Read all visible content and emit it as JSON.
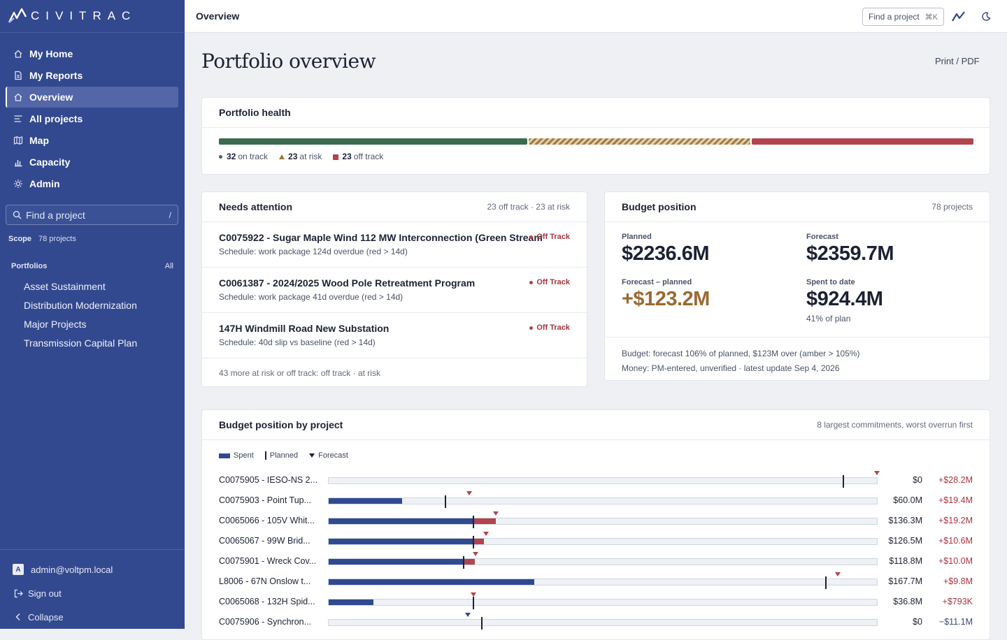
{
  "app": {
    "brand": "CIVITRAC"
  },
  "sidebar": {
    "nav": [
      {
        "label": "My Home",
        "icon": "home-icon",
        "active": false
      },
      {
        "label": "My Reports",
        "icon": "document-icon",
        "active": false
      },
      {
        "label": "Overview",
        "icon": "home-icon",
        "active": true
      },
      {
        "label": "All projects",
        "icon": "list-icon",
        "active": false
      },
      {
        "label": "Map",
        "icon": "map-icon",
        "active": false
      },
      {
        "label": "Capacity",
        "icon": "bar-chart-icon",
        "active": false
      },
      {
        "label": "Admin",
        "icon": "gear-icon",
        "active": false
      }
    ],
    "search": {
      "placeholder": "Find a project",
      "shortcut": "/"
    },
    "scope": {
      "label": "Scope",
      "value": "78 projects"
    },
    "portfolios": {
      "heading": "Portfolios",
      "all_label": "All",
      "items": [
        "Asset Sustainment",
        "Distribution Modernization",
        "Major Projects",
        "Transmission Capital Plan"
      ]
    },
    "user": {
      "initial": "A",
      "email": "admin@voltpm.local"
    },
    "sign_out": "Sign out",
    "collapse": "Collapse"
  },
  "topbar": {
    "title": "Overview",
    "find_label": "Find a project",
    "find_shortcut": "⌘K"
  },
  "page": {
    "title": "Portfolio overview",
    "print_label": "Print / PDF"
  },
  "health": {
    "title": "Portfolio health",
    "on_track": 32,
    "at_risk": 23,
    "off_track": 23,
    "on_track_label": "on track",
    "at_risk_label": "at risk",
    "off_track_label": "off track",
    "colors": {
      "on_track": "#3a6b50",
      "at_risk": "#a47c41",
      "off_track": "#b1444d"
    }
  },
  "attention": {
    "title": "Needs attention",
    "meta": "23 off track · 23 at risk",
    "items": [
      {
        "title": "C0075922 - Sugar Maple Wind 112 MW Interconnection (Green Stream",
        "sub": "Schedule: work package 124d overdue (red > 14d)",
        "badge": "Off Track"
      },
      {
        "title": "C0061387 - 2024/2025 Wood Pole Retreatment Program",
        "sub": "Schedule: work package 41d overdue (red > 14d)",
        "badge": "Off Track"
      },
      {
        "title": "147H Windmill Road New Substation",
        "sub": "Schedule: 40d slip vs baseline (red > 14d)",
        "badge": "Off Track"
      }
    ],
    "more": "43 more at risk or off track: off track · at risk"
  },
  "budget": {
    "title": "Budget position",
    "meta": "78 projects",
    "planned_label": "Planned",
    "planned": "$2236.6M",
    "forecast_label": "Forecast",
    "forecast": "$2359.7M",
    "delta_label": "Forecast – planned",
    "delta": "+$123.2M",
    "spent_label": "Spent to date",
    "spent": "$924.4M",
    "spent_sub": "41% of plan",
    "note1": "Budget: forecast 106% of planned, $123M over (amber > 105%)",
    "note2": "Money: PM-entered, unverified · latest update Sep 4, 2026"
  },
  "by_project": {
    "title": "Budget position by project",
    "meta": "8 largest commitments, worst overrun first",
    "legend": {
      "spent": "Spent",
      "planned": "Planned",
      "forecast": "Forecast"
    },
    "rows": [
      {
        "label": "C0075905 - IESO-NS 2...",
        "spent_text": "$0",
        "delta": "+$28.2M",
        "spent": 0,
        "planned": 0.938,
        "forecast": 1.0
      },
      {
        "label": "C0075903 - Point Tup...",
        "spent_text": "$60.0M",
        "delta": "+$19.4M",
        "spent": 0.134,
        "planned": 0.212,
        "forecast": 0.256
      },
      {
        "label": "C0065066 - 105V Whit...",
        "spent_text": "$136.3M",
        "delta": "+$19.2M",
        "spent": 0.305,
        "planned": 0.263,
        "forecast": 0.305
      },
      {
        "label": "C0065067 - 99W Brid...",
        "spent_text": "$126.5M",
        "delta": "+$10.6M",
        "spent": 0.283,
        "planned": 0.263,
        "forecast": 0.287
      },
      {
        "label": "C0075901 - Wreck Cov...",
        "spent_text": "$118.8M",
        "delta": "+$10.0M",
        "spent": 0.266,
        "planned": 0.245,
        "forecast": 0.268
      },
      {
        "label": "L8006 - 67N Onslow t...",
        "spent_text": "$167.7M",
        "delta": "+$9.8M",
        "spent": 0.375,
        "planned": 0.905,
        "forecast": 0.928
      },
      {
        "label": "C0065068 - 132H Spid...",
        "spent_text": "$36.8M",
        "delta": "+$793K",
        "spent": 0.082,
        "planned": 0.263,
        "forecast": 0.264
      },
      {
        "label": "C0075906 - Synchron...",
        "spent_text": "$0",
        "delta": "−$11.1M",
        "spent": 0,
        "planned": 0.278,
        "forecast": 0.254
      }
    ]
  }
}
